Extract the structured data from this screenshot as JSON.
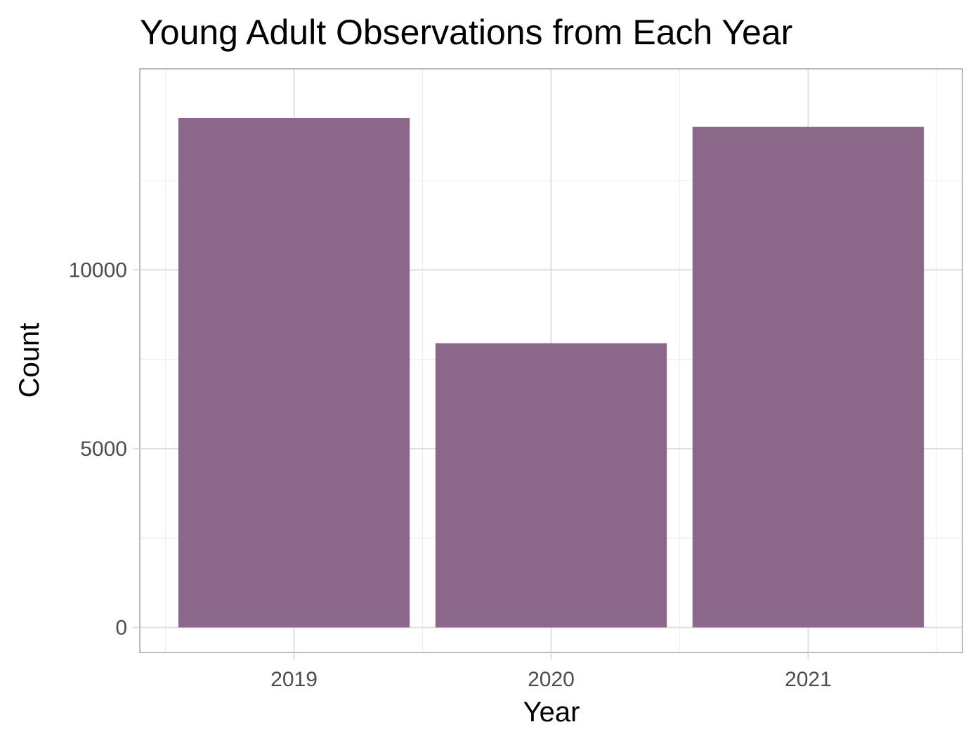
{
  "colors": {
    "bar": "#8B6889",
    "grid_major": "#DDDDDD",
    "grid_minor": "#EEEEEE",
    "panel_border": "#AAAAAA",
    "tick": "#4D4D4D",
    "text": "#000000",
    "background": "#FFFFFF"
  },
  "chart_data": {
    "type": "bar",
    "title": "Young Adult Observations from Each Year",
    "xlabel": "Year",
    "ylabel": "Count",
    "categories": [
      "2019",
      "2020",
      "2021"
    ],
    "values": [
      14250,
      7950,
      14000
    ],
    "ylim": [
      -700,
      15625
    ],
    "yticks": [
      0,
      5000,
      10000
    ],
    "grid": true,
    "legend": "none"
  }
}
